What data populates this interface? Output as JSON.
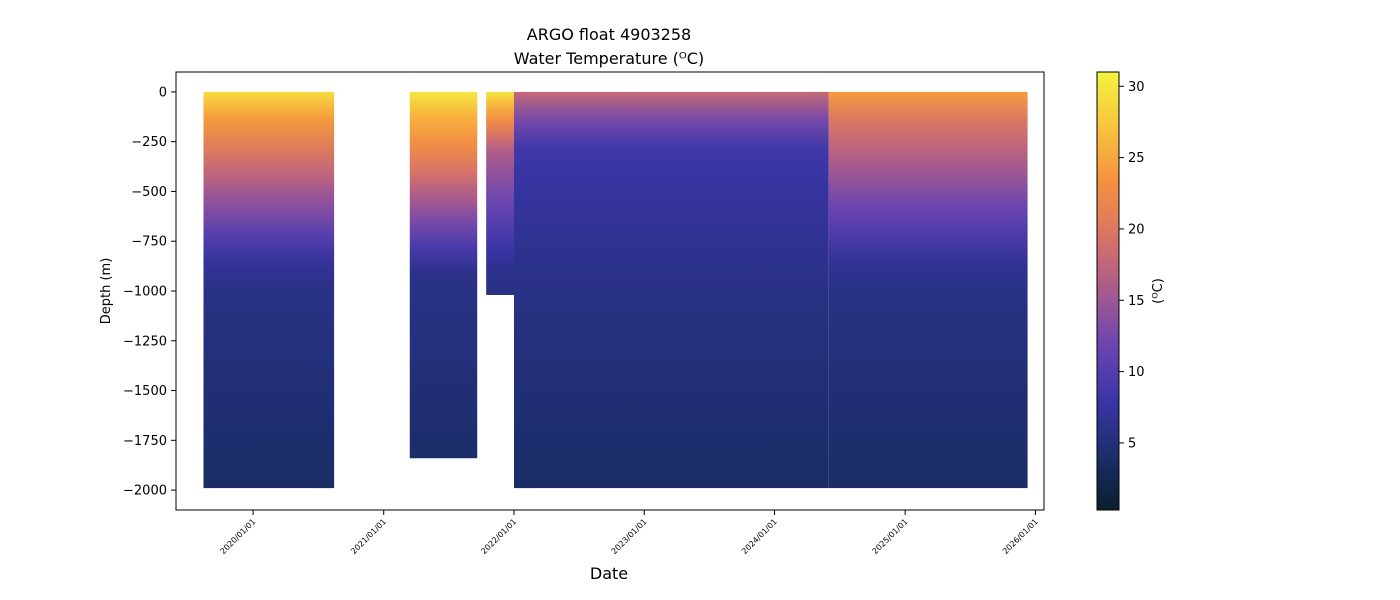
{
  "chart_data": {
    "type": "heatmap",
    "title_lines": [
      "ARGO float 4903258",
      "Water Temperature (ᴼC)"
    ],
    "xlabel": "Date",
    "ylabel": "Depth (m)",
    "colorbar_label": "(ᴼC)",
    "x_ticks": [
      "2020/01/01",
      "2021/01/01",
      "2022/01/01",
      "2023/01/01",
      "2024/01/01",
      "2025/01/01",
      "2026/01/01"
    ],
    "y_ticks": [
      0,
      -250,
      -500,
      -750,
      -1000,
      -1250,
      -1500,
      -1750,
      -2000
    ],
    "y_tick_labels": [
      "0",
      "−250",
      "−500",
      "−750",
      "−1000",
      "−1250",
      "−1500",
      "−1750",
      "−2000"
    ],
    "colorbar_ticks": [
      5,
      10,
      15,
      20,
      25,
      30
    ],
    "xlim": [
      "2019/05/30",
      "2026/01/25"
    ],
    "ylim": [
      -2100,
      100
    ],
    "clim": [
      0.3,
      31
    ],
    "colormap": [
      "#0a1f2e",
      "#1b2e6a",
      "#3b35a8",
      "#6a45b0",
      "#a85a8e",
      "#d87466",
      "#f5913e",
      "#f8c43e",
      "#f3f33f"
    ],
    "grid": false,
    "segments": [
      {
        "start": "2019/08/15",
        "end": "2020/08/15",
        "max_depth": -1990,
        "surface_temp": 27,
        "upper_temp": 20
      },
      {
        "start": "2021/03/15",
        "end": "2021/09/20",
        "max_depth": -1840,
        "surface_temp": 28,
        "upper_temp": 22
      },
      {
        "start": "2021/10/15",
        "end": "2022/01/01",
        "max_depth": -1020,
        "surface_temp": 28,
        "upper_temp": 16
      },
      {
        "start": "2022/01/01",
        "end": "2024/06/01",
        "max_depth": -1990,
        "surface_temp": 16,
        "upper_temp": 8
      },
      {
        "start": "2024/06/01",
        "end": "2025/12/10",
        "max_depth": -1990,
        "surface_temp": 22,
        "upper_temp": 17
      }
    ]
  }
}
